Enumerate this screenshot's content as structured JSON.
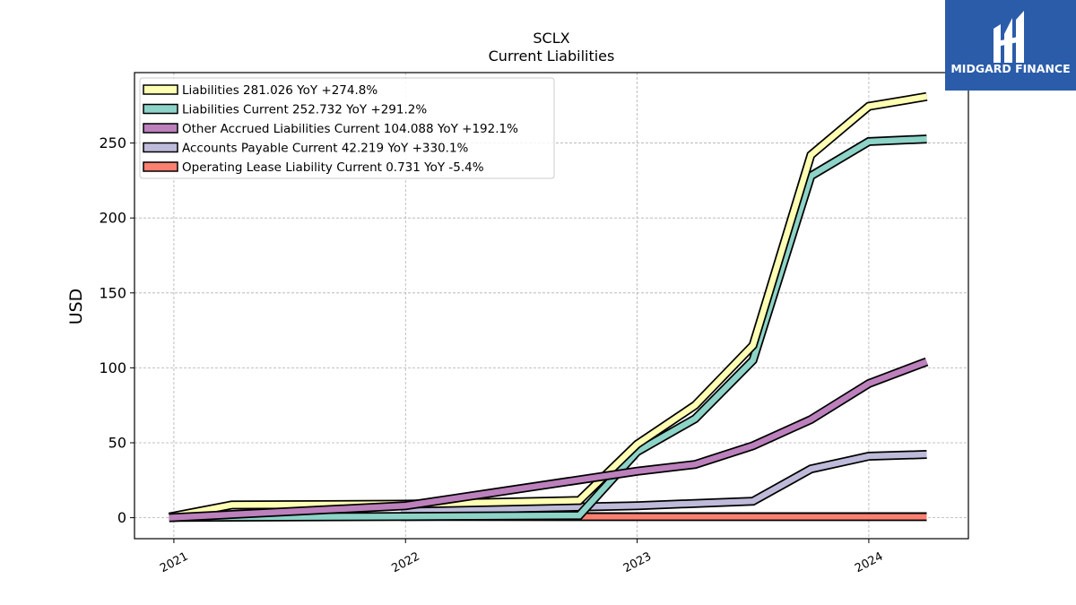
{
  "chart_data": {
    "type": "line",
    "title": "SCLX",
    "subtitle": "Current  Liabilities",
    "xlabel": "",
    "ylabel": "USD",
    "ylim": [
      -14,
      297
    ],
    "xlim": [
      2020.83,
      2024.43
    ],
    "x_ticks": [
      {
        "value": 2021,
        "label": "2021"
      },
      {
        "value": 2022,
        "label": "2022"
      },
      {
        "value": 2023,
        "label": "2023"
      },
      {
        "value": 2024,
        "label": "2024"
      }
    ],
    "y_ticks": [
      0,
      50,
      100,
      150,
      200,
      250
    ],
    "grid": true,
    "legend_position": "top-left",
    "series": [
      {
        "name": "Liabilities",
        "legend": "Liabilities  281.026 YoY +274.8%",
        "color": "#ffffb3",
        "x": [
          2020.98,
          2021.25,
          2022.0,
          2022.75,
          2023.0,
          2023.25,
          2023.5,
          2023.75,
          2024.0,
          2024.25
        ],
        "y": [
          0.5,
          8.5,
          9.0,
          11.5,
          49.0,
          75.0,
          115.0,
          242.0,
          274.5,
          281.0
        ]
      },
      {
        "name": "Liabilities Current",
        "legend": "Liabilities Current  252.732 YoY +291.2%",
        "color": "#8dd3c7",
        "x": [
          2020.98,
          2022.0,
          2022.75,
          2023.0,
          2023.25,
          2023.5,
          2023.75,
          2024.0,
          2024.25
        ],
        "y": [
          0.2,
          0.8,
          1.5,
          44.0,
          66.0,
          105.0,
          228.0,
          251.0,
          252.7
        ]
      },
      {
        "name": "Other Accrued Liabilities Current",
        "legend": "Other Accrued Liabilities Current  104.088 YoY +192.1%",
        "color": "#bc80bd",
        "x": [
          2020.98,
          2022.0,
          2023.0,
          2023.25,
          2023.5,
          2023.75,
          2024.0,
          2024.25
        ],
        "y": [
          0.0,
          8.0,
          31.0,
          35.5,
          48.0,
          65.5,
          89.5,
          104.1
        ]
      },
      {
        "name": "Accounts Payable Current",
        "legend": "Accounts Payable Current  42.219 YoY +330.1%",
        "color": "#bebada",
        "x": [
          2021.98,
          2023.0,
          2023.5,
          2023.75,
          2024.0,
          2024.25
        ],
        "y": [
          4.5,
          8.0,
          11.0,
          32.5,
          41.0,
          42.2
        ]
      },
      {
        "name": "Operating Lease Liability Current",
        "legend": "Operating Lease Liability Current  0.731 YoY -5.4%",
        "color": "#fb8072",
        "x": [
          2021.98,
          2024.25
        ],
        "y": [
          0.77,
          0.73
        ]
      }
    ]
  },
  "logo": {
    "text": "MIDGARD FINANCE",
    "bg_color": "#2a5caa"
  }
}
